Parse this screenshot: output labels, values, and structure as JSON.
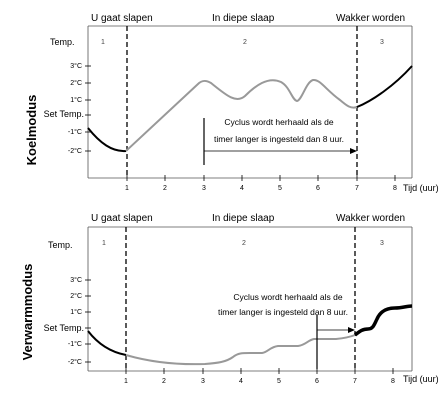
{
  "diagrams": [
    {
      "id": "cool",
      "mode_label": "Koelmodus",
      "phases": [
        "U gaat slapen",
        "In diepe slaap",
        "Wakker worden"
      ],
      "section_numbers": [
        "1",
        "2",
        "3"
      ],
      "y_axis_title": "Temp.",
      "y_ticks": [
        "3°C",
        "2°C",
        "1°C",
        "Set Temp.",
        "-1°C",
        "-2°C"
      ],
      "x_ticks": [
        "1",
        "2",
        "3",
        "4",
        "5",
        "6",
        "7",
        "8"
      ],
      "x_unit": "Tijd (uur)",
      "note_lines": [
        "Cyclus wordt herhaald als de",
        "timer langer is ingesteld dan 8 uur."
      ]
    },
    {
      "id": "warm",
      "mode_label": "Verwarmmodus",
      "phases": [
        "U gaat slapen",
        "In diepe slaap",
        "Wakker worden"
      ],
      "section_numbers": [
        "1",
        "2",
        "3"
      ],
      "y_axis_title": "Temp.",
      "y_ticks": [
        "3°C",
        "2°C",
        "1°C",
        "Set Temp.",
        "-1°C",
        "-2°C"
      ],
      "x_ticks": [
        "1",
        "2",
        "3",
        "4",
        "5",
        "6",
        "7",
        "8"
      ],
      "x_unit": "Tijd (uur)",
      "note_lines": [
        "Cyclus wordt herhaald als de",
        "timer langer is ingesteld dan 8 uur."
      ]
    }
  ]
}
